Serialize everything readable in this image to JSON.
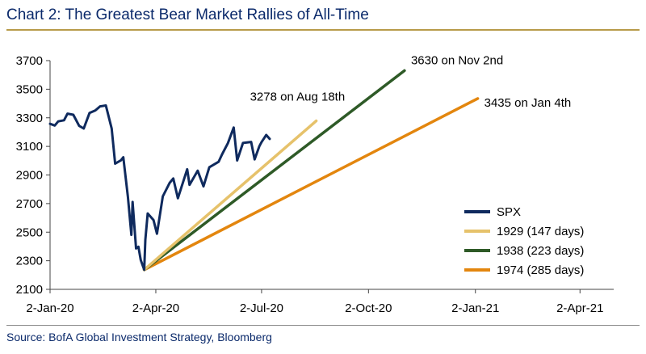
{
  "title": "Chart 2: The Greatest Bear Market Rallies of All-Time",
  "source": "Source: BofA Global Investment Strategy, Bloomberg",
  "chart_data": {
    "type": "line",
    "title": "Chart 2: The Greatest Bear Market Rallies of All-Time",
    "xlabel": "",
    "ylabel": "",
    "ylim": [
      2100,
      3700
    ],
    "xlim": [
      "2020-01-02",
      "2021-05-01"
    ],
    "y_ticks": [
      2100,
      2300,
      2500,
      2700,
      2900,
      3100,
      3300,
      3500,
      3700
    ],
    "x_ticks": [
      {
        "date": "2020-01-02",
        "label": "2-Jan-20"
      },
      {
        "date": "2020-04-02",
        "label": "2-Apr-20"
      },
      {
        "date": "2020-07-02",
        "label": "2-Jul-20"
      },
      {
        "date": "2020-10-02",
        "label": "2-Oct-20"
      },
      {
        "date": "2021-01-02",
        "label": "2-Jan-21"
      },
      {
        "date": "2021-04-02",
        "label": "2-Apr-21"
      }
    ],
    "grid": false,
    "legend_position": "right",
    "series": [
      {
        "name": "SPX",
        "color": "#0f2a5e",
        "points": [
          [
            "2020-01-02",
            3258
          ],
          [
            "2020-01-06",
            3246
          ],
          [
            "2020-01-09",
            3275
          ],
          [
            "2020-01-14",
            3283
          ],
          [
            "2020-01-17",
            3329
          ],
          [
            "2020-01-22",
            3321
          ],
          [
            "2020-01-27",
            3244
          ],
          [
            "2020-01-31",
            3225
          ],
          [
            "2020-02-05",
            3334
          ],
          [
            "2020-02-10",
            3352
          ],
          [
            "2020-02-14",
            3380
          ],
          [
            "2020-02-19",
            3386
          ],
          [
            "2020-02-24",
            3225
          ],
          [
            "2020-02-27",
            2979
          ],
          [
            "2020-03-03",
            3003
          ],
          [
            "2020-03-05",
            3024
          ],
          [
            "2020-03-09",
            2747
          ],
          [
            "2020-03-12",
            2481
          ],
          [
            "2020-03-13",
            2711
          ],
          [
            "2020-03-16",
            2386
          ],
          [
            "2020-03-18",
            2398
          ],
          [
            "2020-03-20",
            2305
          ],
          [
            "2020-03-23",
            2237
          ],
          [
            "2020-03-24",
            2447
          ],
          [
            "2020-03-26",
            2631
          ],
          [
            "2020-03-31",
            2585
          ],
          [
            "2020-04-03",
            2489
          ],
          [
            "2020-04-08",
            2750
          ],
          [
            "2020-04-14",
            2846
          ],
          [
            "2020-04-17",
            2875
          ],
          [
            "2020-04-21",
            2737
          ],
          [
            "2020-04-29",
            2940
          ],
          [
            "2020-05-01",
            2831
          ],
          [
            "2020-05-08",
            2930
          ],
          [
            "2020-05-13",
            2820
          ],
          [
            "2020-05-18",
            2954
          ],
          [
            "2020-05-26",
            2992
          ],
          [
            "2020-05-29",
            3044
          ],
          [
            "2020-06-03",
            3122
          ],
          [
            "2020-06-08",
            3232
          ],
          [
            "2020-06-11",
            3002
          ],
          [
            "2020-06-16",
            3124
          ],
          [
            "2020-06-23",
            3131
          ],
          [
            "2020-06-26",
            3009
          ],
          [
            "2020-06-30",
            3100
          ],
          [
            "2020-07-02",
            3130
          ],
          [
            "2020-07-06",
            3180
          ],
          [
            "2020-07-09",
            3152
          ]
        ]
      },
      {
        "name": "1929 (147 days)",
        "color": "#e6c26b",
        "points": [
          [
            "2020-03-23",
            2237
          ],
          [
            "2020-08-18",
            3278
          ]
        ]
      },
      {
        "name": "1938 (223 days)",
        "color": "#2e5a27",
        "points": [
          [
            "2020-03-23",
            2237
          ],
          [
            "2020-11-02",
            3630
          ]
        ]
      },
      {
        "name": "1974 (285 days)",
        "color": "#e3860e",
        "points": [
          [
            "2020-03-23",
            2237
          ],
          [
            "2021-01-04",
            3435
          ]
        ]
      }
    ],
    "annotations": [
      {
        "text": "3278 on Aug 18th",
        "date": "2020-08-18",
        "value": 3278
      },
      {
        "text": "3630 on Nov 2nd",
        "date": "2020-11-02",
        "value": 3630
      },
      {
        "text": "3435 on Jan 4th",
        "date": "2021-01-04",
        "value": 3435
      }
    ]
  }
}
